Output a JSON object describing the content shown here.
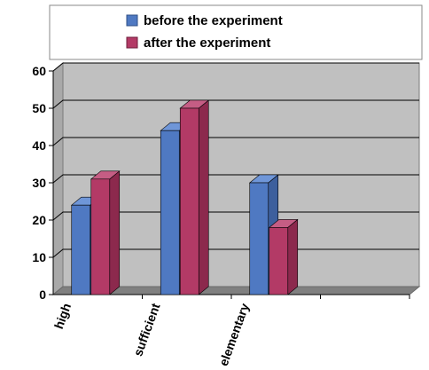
{
  "chart_data": {
    "type": "bar",
    "categories": [
      "high",
      "sufficient",
      "elementary",
      ""
    ],
    "series": [
      {
        "name": "before the experiment",
        "values": [
          24,
          44,
          30,
          null
        ],
        "color": "#4f79c2",
        "side_color": "#3d5f9d",
        "top_color": "#6f96d8"
      },
      {
        "name": "after the experiment",
        "values": [
          31,
          50,
          18,
          null
        ],
        "color": "#b33a66",
        "side_color": "#8c294d",
        "top_color": "#c55d84"
      }
    ],
    "y_ticks": [
      0,
      10,
      20,
      30,
      40,
      50,
      60
    ],
    "ylim": [
      0,
      60
    ],
    "title": "",
    "xlabel": "",
    "ylabel": "",
    "legend_position": "top",
    "grid": true,
    "style": "3d-clustered-column",
    "plot_background": "#c0c0c0",
    "floor_color": "#808080"
  }
}
